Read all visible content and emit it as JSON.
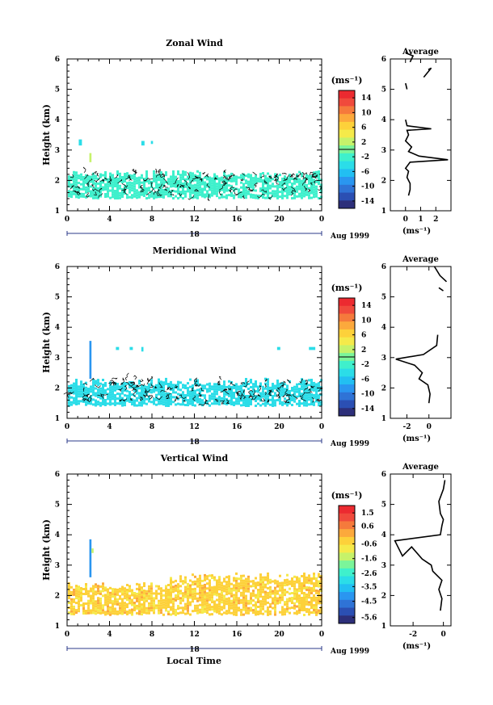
{
  "figure": {
    "date_label": "Aug 1999",
    "day_label": "18",
    "xlabel_bottom": "Local Time",
    "colorbar_unit": "(ms⁻¹)",
    "avg_title": "Average",
    "avg_xlabel": "(ms⁻¹)"
  },
  "colormap": [
    "#2d2f7a",
    "#2b4fb3",
    "#2f73d6",
    "#2a96f0",
    "#22bff2",
    "#2bdde8",
    "#3ff0cc",
    "#7bf59a",
    "#c6f26a",
    "#f5ea4a",
    "#fdd13a",
    "#fca93c",
    "#f57a3c",
    "#f04a3c",
    "#ec2a30"
  ],
  "chart_data": [
    {
      "type": "heatmap",
      "title": "Zonal Wind",
      "ylabel": "Height (km)",
      "xlim": [
        0,
        24
      ],
      "ylim": [
        1,
        6
      ],
      "xticks": [
        "0",
        "4",
        "8",
        "12",
        "16",
        "20",
        "0"
      ],
      "yticks": [
        "1",
        "2",
        "3",
        "4",
        "5",
        "6"
      ],
      "colorbar": {
        "ticks": [
          "14",
          "10",
          "6",
          "2",
          "-2",
          "-6",
          "-10",
          "-14"
        ],
        "range": [
          -16,
          16
        ],
        "contour_at": 0
      },
      "fill_color": "#3ff0cc",
      "data_band_km": [
        1.45,
        2.55
      ],
      "blobs": [
        {
          "x": [
            1.1,
            1.4
          ],
          "y": [
            3.15,
            3.35
          ],
          "color": "#2bdde8"
        },
        {
          "x": [
            2.1,
            2.3
          ],
          "y": [
            2.6,
            2.9
          ],
          "color": "#c6f26a"
        },
        {
          "x": [
            7.0,
            7.3
          ],
          "y": [
            3.15,
            3.3
          ],
          "color": "#2bdde8"
        },
        {
          "x": [
            7.9,
            8.1
          ],
          "y": [
            3.2,
            3.3
          ],
          "color": "#2bdde8"
        }
      ],
      "average": {
        "xlim": [
          -1,
          3
        ],
        "xticks": [
          "0",
          "1",
          "2"
        ],
        "segments": [
          [
            [
              0.2,
              1.5
            ],
            [
              0.3,
              1.7
            ],
            [
              0.3,
              1.9
            ],
            [
              0.1,
              2.1
            ],
            [
              0.2,
              2.3
            ],
            [
              0.0,
              2.4
            ],
            [
              0.3,
              2.6
            ],
            [
              2.8,
              2.68
            ],
            [
              0.9,
              2.8
            ],
            [
              0.2,
              2.95
            ],
            [
              0.4,
              3.1
            ],
            [
              0.0,
              3.3
            ],
            [
              0.2,
              3.5
            ],
            [
              0.1,
              3.65
            ],
            [
              1.7,
              3.7
            ],
            [
              0.1,
              3.8
            ],
            [
              0.0,
              4.0
            ]
          ],
          [
            [
              0.1,
              5.0
            ],
            [
              0.0,
              5.2
            ]
          ],
          [
            [
              1.2,
              5.4
            ],
            [
              1.7,
              5.7
            ],
            [
              1.5,
              5.65
            ]
          ],
          [
            [
              0.0,
              6.2
            ],
            [
              0.5,
              6.1
            ],
            [
              0.3,
              5.9
            ]
          ]
        ]
      }
    },
    {
      "type": "heatmap",
      "title": "Meridional Wind",
      "ylabel": "Height (km)",
      "xlim": [
        0,
        24
      ],
      "ylim": [
        1,
        6
      ],
      "xticks": [
        "0",
        "4",
        "8",
        "12",
        "16",
        "20",
        "0"
      ],
      "yticks": [
        "1",
        "2",
        "3",
        "4",
        "5",
        "6"
      ],
      "colorbar": {
        "ticks": [
          "14",
          "10",
          "6",
          "2",
          "-2",
          "-6",
          "-10",
          "-14"
        ],
        "range": [
          -16,
          16
        ],
        "contour_at": 0
      },
      "fill_color": "#2bdde8",
      "data_band_km": [
        1.45,
        2.55
      ],
      "blobs": [
        {
          "x": [
            2.1,
            2.3
          ],
          "y": [
            2.3,
            3.55
          ],
          "color": "#2a96f0"
        },
        {
          "x": [
            4.6,
            4.9
          ],
          "y": [
            3.25,
            3.35
          ],
          "color": "#2bdde8"
        },
        {
          "x": [
            5.9,
            6.2
          ],
          "y": [
            3.25,
            3.35
          ],
          "color": "#2bdde8"
        },
        {
          "x": [
            7.0,
            7.2
          ],
          "y": [
            3.2,
            3.35
          ],
          "color": "#2bdde8"
        },
        {
          "x": [
            19.8,
            20.1
          ],
          "y": [
            3.25,
            3.35
          ],
          "color": "#2bdde8"
        },
        {
          "x": [
            22.8,
            23.4
          ],
          "y": [
            3.25,
            3.35
          ],
          "color": "#2bdde8"
        }
      ],
      "average": {
        "xlim": [
          -3.5,
          2
        ],
        "xticks": [
          "-2",
          "0"
        ],
        "segments": [
          [
            [
              0.0,
              1.5
            ],
            [
              0.1,
              1.8
            ],
            [
              -0.1,
              2.1
            ],
            [
              -0.9,
              2.3
            ],
            [
              -0.6,
              2.5
            ],
            [
              -1.3,
              2.75
            ],
            [
              -3.0,
              2.95
            ],
            [
              -0.5,
              3.1
            ],
            [
              0.7,
              3.4
            ],
            [
              0.8,
              3.75
            ]
          ],
          [
            [
              0.9,
              5.3
            ],
            [
              1.3,
              5.2
            ]
          ],
          [
            [
              0.5,
              6.0
            ],
            [
              1.0,
              5.7
            ],
            [
              1.6,
              5.5
            ]
          ]
        ]
      }
    },
    {
      "type": "heatmap",
      "title": "Vertical Wind",
      "ylabel": "Height (km)",
      "xlabel": "Local Time",
      "xlim": [
        0,
        24
      ],
      "ylim": [
        1,
        6
      ],
      "xticks": [
        "0",
        "4",
        "8",
        "12",
        "16",
        "20",
        "0"
      ],
      "yticks": [
        "1",
        "2",
        "3",
        "4",
        "5",
        "6"
      ],
      "colorbar": {
        "ticks": [
          "1.5",
          "0.6",
          "-0.6",
          "-1.6",
          "-2.6",
          "-3.5",
          "-4.5",
          "-5.6"
        ],
        "range": [
          -6,
          2
        ]
      },
      "fill_color": "#fdd13a",
      "data_band_km": [
        1.4,
        2.6
      ],
      "blobs": [
        {
          "x": [
            2.1,
            2.3
          ],
          "y": [
            2.6,
            3.85
          ],
          "color": "#2a96f0"
        },
        {
          "x": [
            2.3,
            2.5
          ],
          "y": [
            3.4,
            3.55
          ],
          "color": "#c6f26a"
        }
      ],
      "average": {
        "xlim": [
          -3.5,
          0.5
        ],
        "xticks": [
          "-2",
          "0"
        ],
        "segments": [
          [
            [
              -0.2,
              1.5
            ],
            [
              -0.1,
              1.9
            ],
            [
              -0.3,
              2.2
            ],
            [
              -0.1,
              2.5
            ],
            [
              -0.7,
              2.8
            ],
            [
              -0.8,
              3.0
            ],
            [
              -1.4,
              3.2
            ],
            [
              -2.1,
              3.6
            ],
            [
              -2.7,
              3.3
            ],
            [
              -3.2,
              3.8
            ],
            [
              -0.2,
              4.0
            ],
            [
              -0.1,
              4.3
            ],
            [
              0.0,
              4.5
            ],
            [
              -0.2,
              4.7
            ],
            [
              -0.3,
              5.1
            ],
            [
              0.0,
              5.5
            ],
            [
              0.1,
              5.8
            ]
          ]
        ]
      }
    }
  ]
}
